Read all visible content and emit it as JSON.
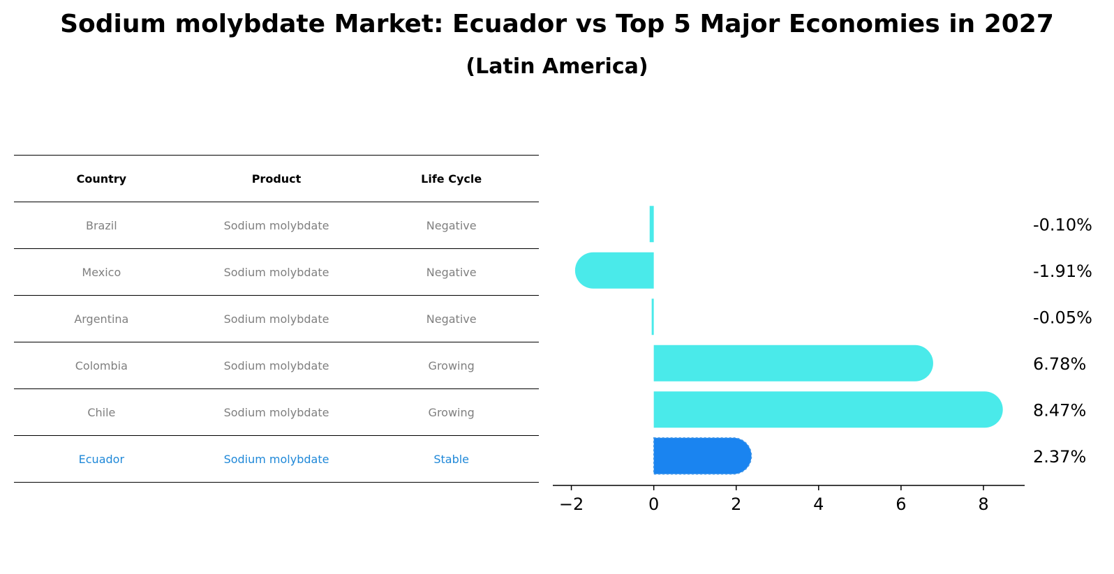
{
  "title": "Sodium molybdate Market: Ecuador vs Top 5 Major Economies in 2027",
  "subtitle": "(Latin America)",
  "table": {
    "headers": [
      "Country",
      "Product",
      "Life Cycle"
    ],
    "rows": [
      {
        "country": "Brazil",
        "product": "Sodium molybdate",
        "life_cycle": "Negative"
      },
      {
        "country": "Mexico",
        "product": "Sodium molybdate",
        "life_cycle": "Negative"
      },
      {
        "country": "Argentina",
        "product": "Sodium molybdate",
        "life_cycle": "Negative"
      },
      {
        "country": "Colombia",
        "product": "Sodium molybdate",
        "life_cycle": "Growing"
      },
      {
        "country": "Chile",
        "product": "Sodium molybdate",
        "life_cycle": "Growing"
      },
      {
        "country": "Ecuador",
        "product": "Sodium molybdate",
        "life_cycle": "Stable"
      }
    ]
  },
  "chart_data": {
    "type": "bar",
    "orientation": "horizontal",
    "categories": [
      "Brazil",
      "Mexico",
      "Argentina",
      "Colombia",
      "Chile",
      "Ecuador"
    ],
    "values": [
      -0.1,
      -1.91,
      -0.05,
      6.78,
      8.47,
      2.37
    ],
    "value_labels": [
      "-0.10%",
      "-1.91%",
      "-0.05%",
      "6.78%",
      "8.47%",
      "2.37%"
    ],
    "highlight": "Ecuador",
    "xlim": [
      -2.45,
      9.0
    ],
    "xticks": [
      -2,
      0,
      2,
      4,
      6,
      8
    ],
    "xtick_labels": [
      "−2",
      "0",
      "2",
      "4",
      "6",
      "8"
    ],
    "colors": {
      "default": "#4aeaea",
      "highlight": "#1a84f0",
      "highlight_text": "#1f88d8"
    }
  }
}
